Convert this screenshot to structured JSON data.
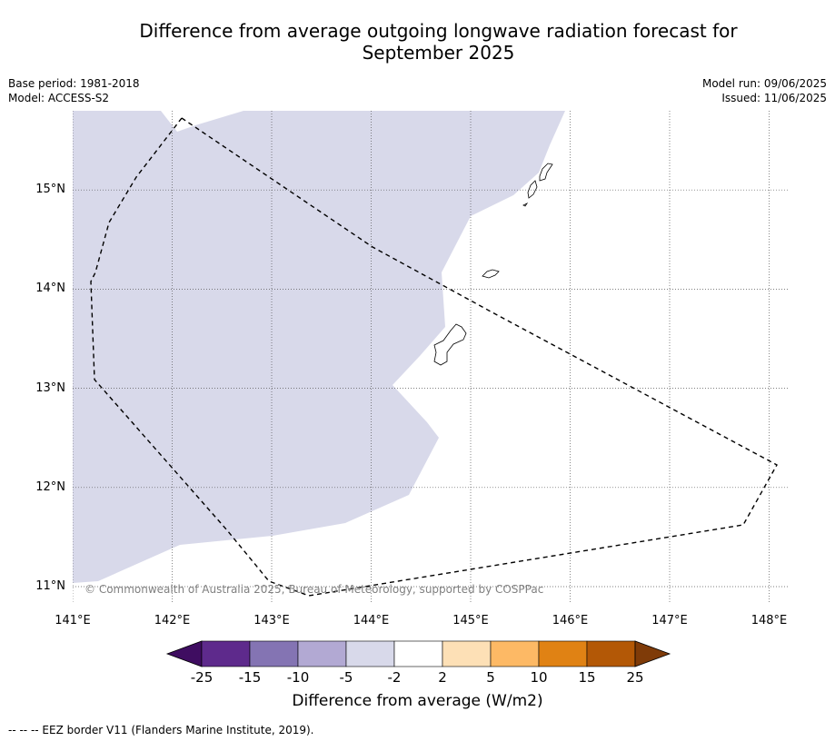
{
  "title_line1": "Difference from average outgoing longwave radiation forecast for",
  "title_line2": "September 2025",
  "meta_left": [
    "Base period: 1981-2018",
    "Model: ACCESS-S2"
  ],
  "meta_right": [
    "Model run: 09/06/2025",
    "Issued: 11/06/2025"
  ],
  "map": {
    "lon_range": [
      141.0,
      148.2
    ],
    "lat_range": [
      10.8,
      15.8
    ],
    "lon_ticks": [
      141,
      142,
      143,
      144,
      145,
      146,
      147,
      148
    ],
    "lon_tick_labels": [
      "141°E",
      "142°E",
      "143°E",
      "144°E",
      "145°E",
      "146°E",
      "147°E",
      "148°E"
    ],
    "lat_ticks": [
      11,
      12,
      13,
      14,
      15
    ],
    "lat_tick_labels": [
      "11°N",
      "12°N",
      "13°N",
      "14°N",
      "15°N"
    ],
    "anomaly_fill_color": "#d8d9ea",
    "anomaly_fill_category": "-5 to -2",
    "copyright": "© Commonwealth of Australia 2025, Bureau of Meteorology, supported by COSPPac"
  },
  "colorbar": {
    "tick_labels": [
      "-25",
      "-15",
      "-10",
      "-5",
      "-2",
      "2",
      "5",
      "10",
      "15",
      "25"
    ],
    "colors": [
      "#3f0d61",
      "#5e2a8c",
      "#8474b3",
      "#b2a9d3",
      "#d8d9ea",
      "#ffffff",
      "#fde0b6",
      "#fdb965",
      "#e08214",
      "#b35806",
      "#7f3b08"
    ],
    "title": "Difference from average (W/m2)"
  },
  "footer": "--  --  -- EEZ border V11 (Flanders Marine Institute, 2019)."
}
